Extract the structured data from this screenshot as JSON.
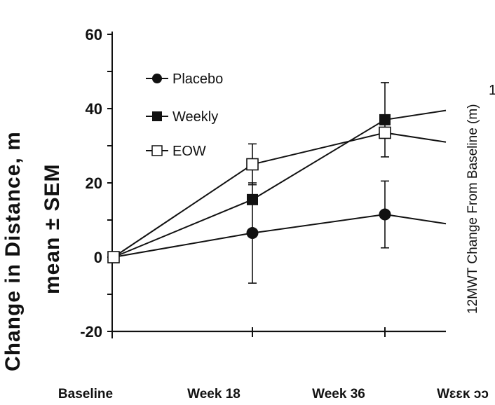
{
  "chart_data": {
    "type": "line",
    "ylabel_line1": "Change in Distance, m",
    "ylabel_line2": "mean ± SEM",
    "right_label": "12MWT Change From Baseline (m)",
    "right_fragment": "1",
    "ylim": [
      -20,
      60
    ],
    "yticks": [
      "60",
      "40",
      "20",
      "0",
      "-20"
    ],
    "categories": [
      "Baseline",
      "Week 18",
      "Week 36",
      "Week 53"
    ],
    "category_labels": [
      "Baseline",
      "Week 18",
      "Week 36",
      "Wɛɛĸ ɔɔ"
    ],
    "x": [
      0,
      18,
      36,
      53
    ],
    "legend_position": "top-left",
    "series": [
      {
        "name": "Placebo",
        "marker": "circle",
        "values": [
          0,
          6.5,
          11.5,
          9
        ],
        "err": [
          0,
          13.5,
          9,
          0
        ]
      },
      {
        "name": "Weekly",
        "marker": "square-filled",
        "values": [
          0,
          15.5,
          37,
          39.5
        ],
        "err": [
          0,
          0,
          10,
          0
        ]
      },
      {
        "name": "EOW",
        "marker": "square-open",
        "values": [
          0,
          25,
          33.5,
          31
        ],
        "err": [
          0,
          5.5,
          0,
          0
        ]
      }
    ]
  },
  "colors": {
    "ink": "#111111",
    "background": "#ffffff"
  }
}
